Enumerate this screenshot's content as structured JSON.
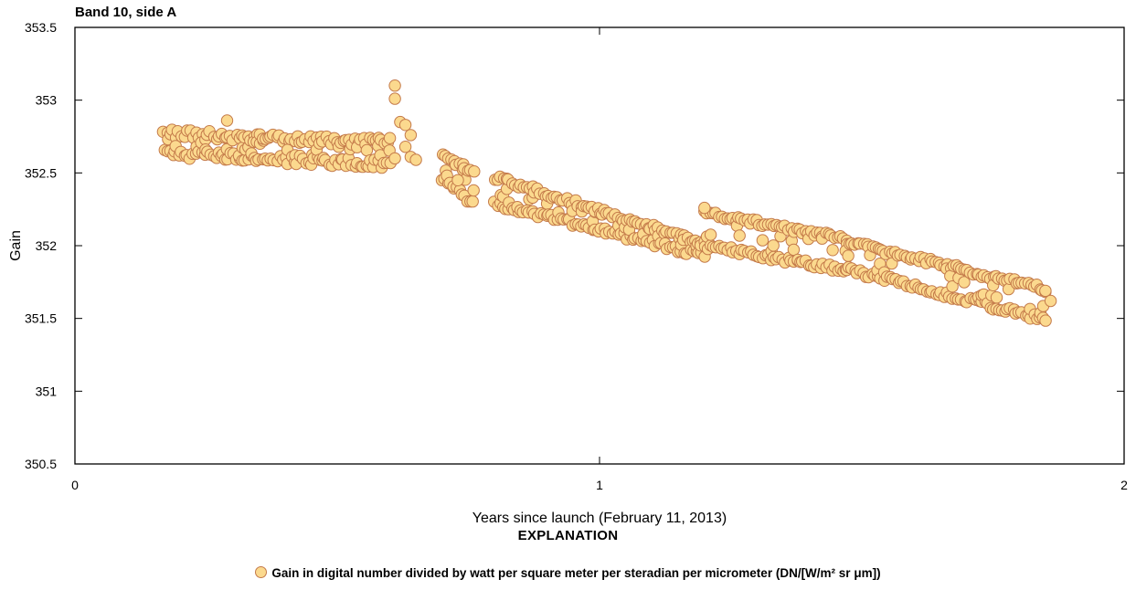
{
  "chart_data": {
    "type": "scatter",
    "title": "Band 10, side A",
    "xlabel": "Years since launch (February 11, 2013)",
    "ylabel": "Gain",
    "xlim": [
      0,
      2
    ],
    "ylim": [
      350.5,
      353.5
    ],
    "x_ticks": [
      "0",
      "1",
      "2"
    ],
    "y_ticks": [
      "350.5",
      "351",
      "351.5",
      "352",
      "352.5",
      "353",
      "353.5"
    ],
    "grid": false,
    "marker_fill": "#fbd98e",
    "marker_stroke": "#c47a4a",
    "series": [
      {
        "segments": [
          {
            "x": [
              0.17,
              0.6
            ],
            "y_upper": [
              352.77,
              352.71
            ],
            "y_lower": [
              352.63,
              352.56
            ],
            "spread": 0.06
          },
          {
            "x": [
              0.7,
              0.76
            ],
            "y_upper": [
              352.62,
              352.5
            ],
            "y_lower": [
              352.46,
              352.29
            ],
            "spread": 0.04
          },
          {
            "x": [
              0.8,
              1.2
            ],
            "y_upper": [
              352.47,
              352.01
            ],
            "y_lower": [
              352.29,
              351.93
            ],
            "spread": 0.04
          },
          {
            "x": [
              1.2,
              1.47
            ],
            "y_upper": [
              352.22,
              352.05
            ],
            "y_lower": [
              352.0,
              351.83
            ],
            "spread": 0.04
          },
          {
            "x": [
              1.47,
              1.85
            ],
            "y_upper": [
              352.03,
              351.7
            ],
            "y_lower": [
              351.84,
              351.49
            ],
            "spread": 0.04
          }
        ],
        "points": [
          {
            "x": 0.61,
            "y": 353.1
          },
          {
            "x": 0.61,
            "y": 353.01
          },
          {
            "x": 0.62,
            "y": 352.85
          },
          {
            "x": 0.63,
            "y": 352.83
          },
          {
            "x": 0.63,
            "y": 352.68
          },
          {
            "x": 0.64,
            "y": 352.76
          },
          {
            "x": 0.29,
            "y": 352.86
          },
          {
            "x": 0.61,
            "y": 352.6
          },
          {
            "x": 0.64,
            "y": 352.61
          },
          {
            "x": 0.65,
            "y": 352.59
          },
          {
            "x": 1.86,
            "y": 351.62
          },
          {
            "x": 1.85,
            "y": 351.69
          },
          {
            "x": 1.2,
            "y": 352.26
          },
          {
            "x": 0.76,
            "y": 352.38
          },
          {
            "x": 0.73,
            "y": 352.45
          }
        ]
      }
    ]
  },
  "explanation": {
    "heading": "EXPLANATION",
    "legend_text": "Gain in digital number divided by watt per square meter per steradian per micrometer (DN/[W/m² sr μm])"
  }
}
